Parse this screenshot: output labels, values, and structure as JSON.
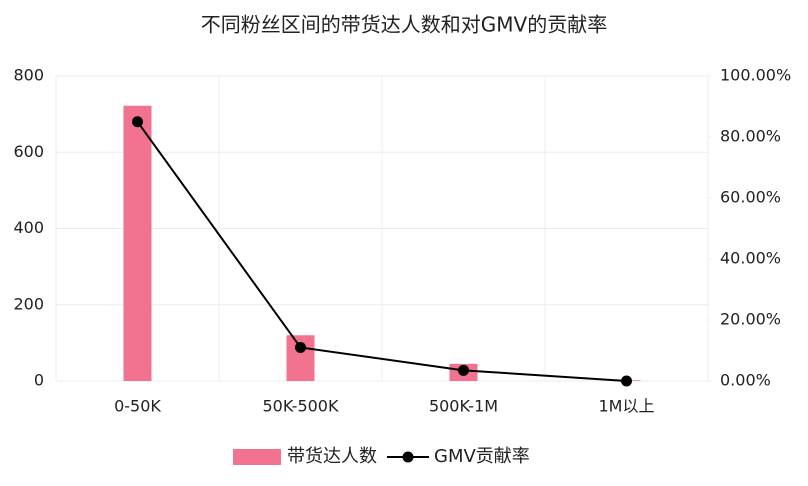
{
  "chart_data": {
    "type": "combo",
    "title": "不同粉丝区间的带货达人数和对GMV的贡献率",
    "categories": [
      "0-50K",
      "50K-500K",
      "500K-1M",
      "1M以上"
    ],
    "series": [
      {
        "name": "带货达人数",
        "type": "bar",
        "color": "#f2738f",
        "values": [
          722,
          120,
          45,
          2
        ]
      },
      {
        "name": "GMV贡献率",
        "type": "line",
        "color": "#000000",
        "axis": "y2",
        "values": [
          85,
          11,
          3.5,
          0
        ]
      }
    ],
    "ylim": [
      0,
      800
    ],
    "yticks": [
      0,
      200,
      400,
      600,
      800
    ],
    "y2lim": [
      0,
      100
    ],
    "y2ticks": [
      {
        "value": 0,
        "label": "0.00%"
      },
      {
        "value": 20,
        "label": "20.00%"
      },
      {
        "value": 40,
        "label": "40.00%"
      },
      {
        "value": 60,
        "label": "60.00%"
      },
      {
        "value": 80,
        "label": "80.00%"
      },
      {
        "value": 100,
        "label": "100.00%"
      }
    ],
    "grid": true,
    "legend": "bottom"
  }
}
